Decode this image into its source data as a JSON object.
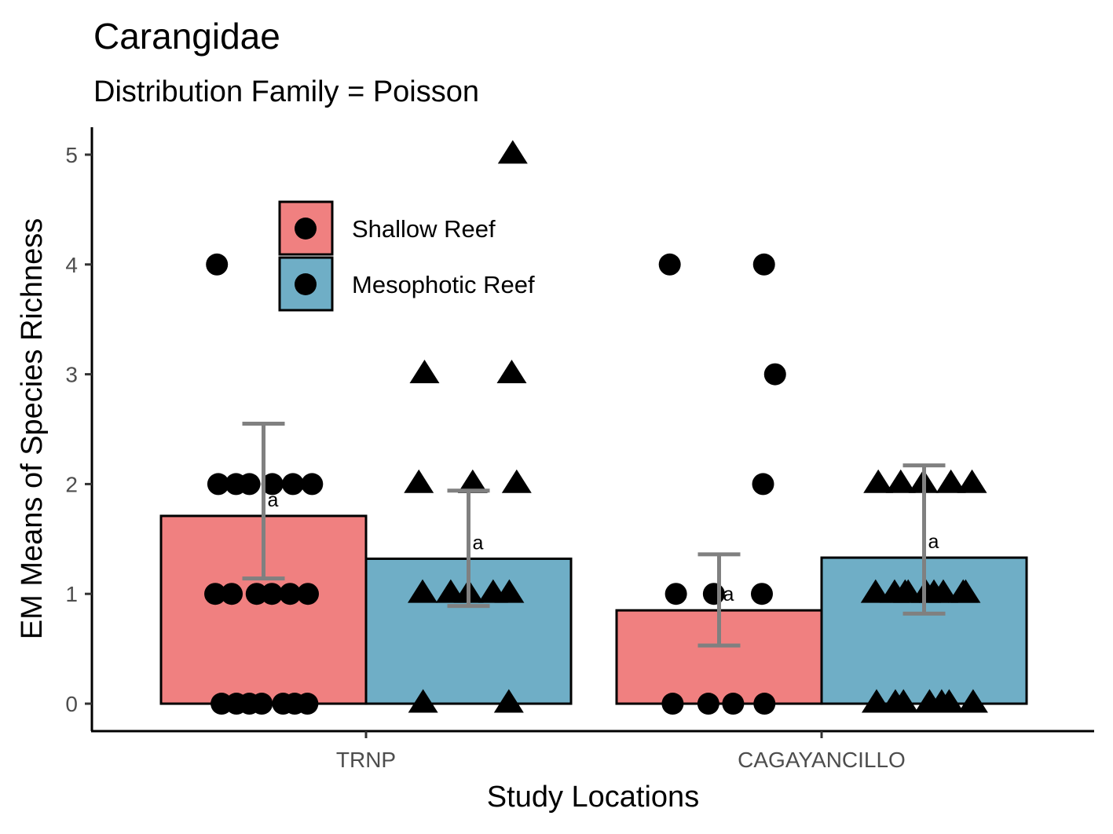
{
  "chart_data": {
    "type": "bar",
    "title": "Carangidae",
    "subtitle": "Distribution Family = Poisson",
    "xlabel": "Study Locations",
    "ylabel": "EM Means of Species Richness",
    "categories": [
      "TRNP",
      "CAGAYANCILLO"
    ],
    "ylim": [
      -0.25,
      5.25
    ],
    "yticks": [
      0,
      1,
      2,
      3,
      4,
      5
    ],
    "grid": false,
    "legend_position": "top-left",
    "series": [
      {
        "name": "Shallow Reef",
        "color": "#F08080",
        "marker": "circle",
        "values": [
          1.71,
          0.85
        ],
        "error_low": [
          1.14,
          0.53
        ],
        "error_high": [
          2.55,
          1.36
        ],
        "significance": [
          "a",
          "a"
        ],
        "points": [
          [
            0,
            0,
            0,
            0,
            0,
            0,
            0,
            1,
            1,
            1,
            1,
            1,
            1,
            2,
            2,
            2,
            2,
            2,
            2,
            4
          ],
          [
            0,
            0,
            0,
            0,
            1,
            1,
            1,
            2,
            3,
            4,
            4
          ]
        ]
      },
      {
        "name": "Mesophotic Reef",
        "color": "#6FAEC6",
        "marker": "triangle",
        "values": [
          1.32,
          1.33
        ],
        "error_low": [
          0.89,
          0.82
        ],
        "error_high": [
          1.94,
          2.17
        ],
        "significance": [
          "a",
          "a"
        ],
        "points": [
          [
            0,
            0,
            1,
            1,
            1,
            1,
            1,
            2,
            2,
            2,
            3,
            3,
            5
          ],
          [
            0,
            0,
            0,
            0,
            0,
            0,
            0,
            1,
            1,
            1,
            1,
            1,
            1,
            1,
            1,
            1,
            2,
            2,
            2,
            2,
            2
          ]
        ]
      }
    ]
  }
}
